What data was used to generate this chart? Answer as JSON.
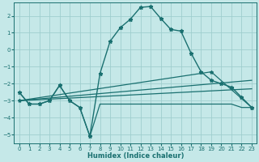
{
  "background_color": "#c5e8e8",
  "grid_color": "#9fcece",
  "line_color": "#1a7070",
  "xlabel": "Humidex (Indice chaleur)",
  "xlim": [
    -0.5,
    23.5
  ],
  "ylim": [
    -5.5,
    2.8
  ],
  "xticks": [
    0,
    1,
    2,
    3,
    4,
    5,
    6,
    7,
    8,
    9,
    10,
    11,
    12,
    13,
    14,
    15,
    16,
    17,
    18,
    19,
    20,
    21,
    22,
    23
  ],
  "yticks": [
    -5,
    -4,
    -3,
    -2,
    -1,
    0,
    1,
    2
  ],
  "main_x": [
    0,
    1,
    2,
    3,
    4,
    5,
    6,
    7,
    8,
    9,
    10,
    11,
    12,
    13,
    14,
    15,
    16,
    17,
    18,
    19,
    20,
    21,
    22,
    23
  ],
  "main_y": [
    -2.5,
    -3.2,
    -3.2,
    -3.0,
    -2.1,
    -3.0,
    -3.4,
    -5.1,
    -1.4,
    0.5,
    1.3,
    1.8,
    2.5,
    2.55,
    1.85,
    1.2,
    1.1,
    -0.2,
    -1.3,
    -1.8,
    -2.0,
    -2.2,
    -2.8,
    -3.4
  ],
  "flat_x": [
    0,
    1,
    2,
    3,
    4,
    5,
    6,
    7,
    8,
    9,
    10,
    11,
    12,
    13,
    14,
    15,
    16,
    17,
    18,
    19,
    20,
    21,
    22,
    23
  ],
  "flat_y": [
    -2.5,
    -3.2,
    -3.2,
    -3.0,
    -2.1,
    -3.0,
    -3.4,
    -5.1,
    -3.2,
    -3.2,
    -3.2,
    -3.2,
    -3.2,
    -3.2,
    -3.2,
    -3.2,
    -3.2,
    -3.2,
    -3.2,
    -3.2,
    -3.2,
    -3.2,
    -3.4,
    -3.4
  ],
  "trend1_x": [
    0,
    23
  ],
  "trend1_y": [
    -3.0,
    -1.8
  ],
  "trend2_x": [
    0,
    23
  ],
  "trend2_y": [
    -3.0,
    -2.3
  ],
  "trend3_x": [
    0,
    19,
    23
  ],
  "trend3_y": [
    -3.0,
    -1.3,
    -3.4
  ]
}
